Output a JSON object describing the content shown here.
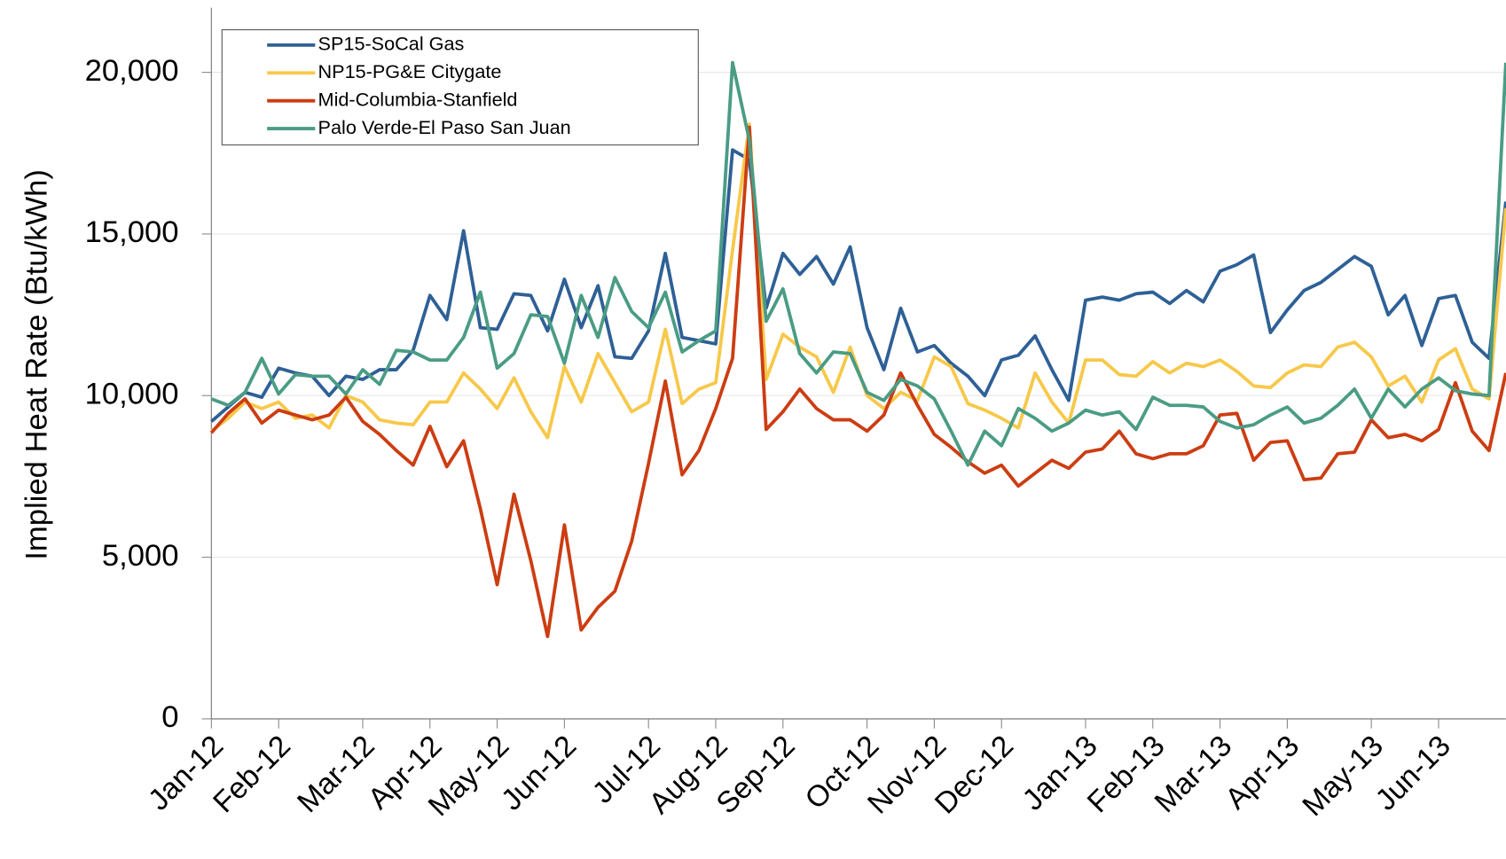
{
  "chart_data": {
    "type": "line",
    "y_label": "Implied Heat Rate (Btu/kWh)",
    "categories": [
      "Jan-12",
      null,
      null,
      null,
      "Feb-12",
      null,
      null,
      null,
      null,
      "Mar-12",
      null,
      null,
      null,
      "Apr-12",
      null,
      null,
      null,
      "May-12",
      null,
      null,
      null,
      "Jun-12",
      null,
      null,
      null,
      null,
      "Jul-12",
      null,
      null,
      null,
      "Aug-12",
      null,
      null,
      null,
      "Sep-12",
      null,
      null,
      null,
      null,
      "Oct-12",
      null,
      null,
      null,
      "Nov-12",
      null,
      null,
      null,
      "Dec-12",
      null,
      null,
      null,
      null,
      "Jan-13",
      null,
      null,
      null,
      "Feb-13",
      null,
      null,
      null,
      "Mar-13",
      null,
      null,
      null,
      "Apr-13",
      null,
      null,
      null,
      null,
      "May-13",
      null,
      null,
      null,
      "Jun-13",
      null,
      null,
      null,
      null
    ],
    "ylim": [
      0,
      22000
    ],
    "yticks": [
      0,
      {
        "value": 5000,
        "label": "5,000"
      },
      {
        "value": 10000,
        "label": "10,000"
      },
      {
        "value": 15000,
        "label": "15,000"
      },
      {
        "value": 20000,
        "label": "20,000"
      }
    ],
    "grid": true,
    "legend": "upper left",
    "series": [
      {
        "name": "SP15-SoCal Gas",
        "color": "#2e6096",
        "values": [
          9200,
          9650,
          10100,
          9950,
          10850,
          10700,
          10600,
          10000,
          10600,
          10500,
          10800,
          10800,
          11400,
          13100,
          12350,
          15100,
          12100,
          12050,
          13150,
          13100,
          12000,
          13600,
          12100,
          13400,
          11200,
          11150,
          12000,
          14400,
          11800,
          11700,
          11600,
          17600,
          17300,
          12700,
          14400,
          13750,
          14300,
          13450,
          14600,
          12100,
          10800,
          12700,
          11350,
          11550,
          11000,
          10600,
          10000,
          11100,
          11250,
          11850,
          10800,
          9850,
          12950,
          13050,
          12950,
          13150,
          13200,
          12850,
          13250,
          12900,
          13850,
          14050,
          14350,
          11950,
          12650,
          13250,
          13500,
          13900,
          14300,
          14000,
          12500,
          13100,
          11550,
          13000,
          13100,
          11650,
          11150,
          16000
        ]
      },
      {
        "name": "NP15-PG&E Citygate",
        "color": "#f7c84a",
        "values": [
          8900,
          9300,
          9800,
          9600,
          9800,
          9300,
          9400,
          9000,
          10000,
          9800,
          9250,
          9150,
          9100,
          9800,
          9800,
          10700,
          10200,
          9600,
          10550,
          9500,
          8700,
          10900,
          9800,
          11300,
          10400,
          9500,
          9800,
          12050,
          9750,
          10200,
          10400,
          14500,
          18400,
          10500,
          11900,
          11500,
          11200,
          10100,
          11500,
          10000,
          9600,
          10100,
          9850,
          11200,
          10900,
          9750,
          9550,
          9300,
          9000,
          10700,
          9800,
          9150,
          11100,
          11100,
          10650,
          10600,
          11050,
          10700,
          11000,
          10900,
          11100,
          10750,
          10300,
          10250,
          10700,
          10950,
          10900,
          11500,
          11650,
          11200,
          10300,
          10600,
          9800,
          11100,
          11450,
          10200,
          9900,
          15800
        ]
      },
      {
        "name": "Mid-Columbia-Stanfield",
        "color": "#cc3d12",
        "values": [
          8850,
          9450,
          9900,
          9150,
          9550,
          9400,
          9250,
          9400,
          9950,
          9200,
          8800,
          8300,
          7850,
          9050,
          7800,
          8600,
          6500,
          4150,
          6950,
          4900,
          2550,
          6000,
          2750,
          3450,
          3950,
          5500,
          7900,
          10450,
          7550,
          8300,
          9600,
          11150,
          18300,
          8950,
          9500,
          10200,
          9600,
          9250,
          9250,
          8900,
          9400,
          10700,
          9700,
          8800,
          8400,
          7950,
          7600,
          7850,
          7200,
          7600,
          8000,
          7750,
          8250,
          8350,
          8900,
          8200,
          8050,
          8200,
          8200,
          8450,
          9400,
          9450,
          8000,
          8550,
          8600,
          7400,
          7450,
          8200,
          8250,
          9250,
          8700,
          8800,
          8600,
          8950,
          10400,
          8900,
          8300,
          10700
        ]
      },
      {
        "name": "Palo Verde-El Paso San Juan",
        "color": "#4a9c84",
        "values": [
          9900,
          9700,
          10100,
          11150,
          10050,
          10650,
          10600,
          10600,
          10050,
          10800,
          10350,
          11400,
          11350,
          11100,
          11100,
          11800,
          13200,
          10850,
          11300,
          12500,
          12450,
          11000,
          13100,
          11800,
          13650,
          12600,
          12100,
          13200,
          11350,
          11700,
          12000,
          20300,
          17900,
          12300,
          13300,
          11300,
          10700,
          11350,
          11300,
          10100,
          9850,
          10500,
          10300,
          9900,
          8900,
          7850,
          8900,
          8450,
          9600,
          9300,
          8900,
          9150,
          9550,
          9400,
          9500,
          8950,
          9950,
          9700,
          9700,
          9650,
          9200,
          9000,
          9100,
          9400,
          9650,
          9150,
          9300,
          9700,
          10200,
          9300,
          10200,
          9650,
          10200,
          10550,
          10150,
          10050,
          10000,
          20300
        ]
      }
    ]
  }
}
